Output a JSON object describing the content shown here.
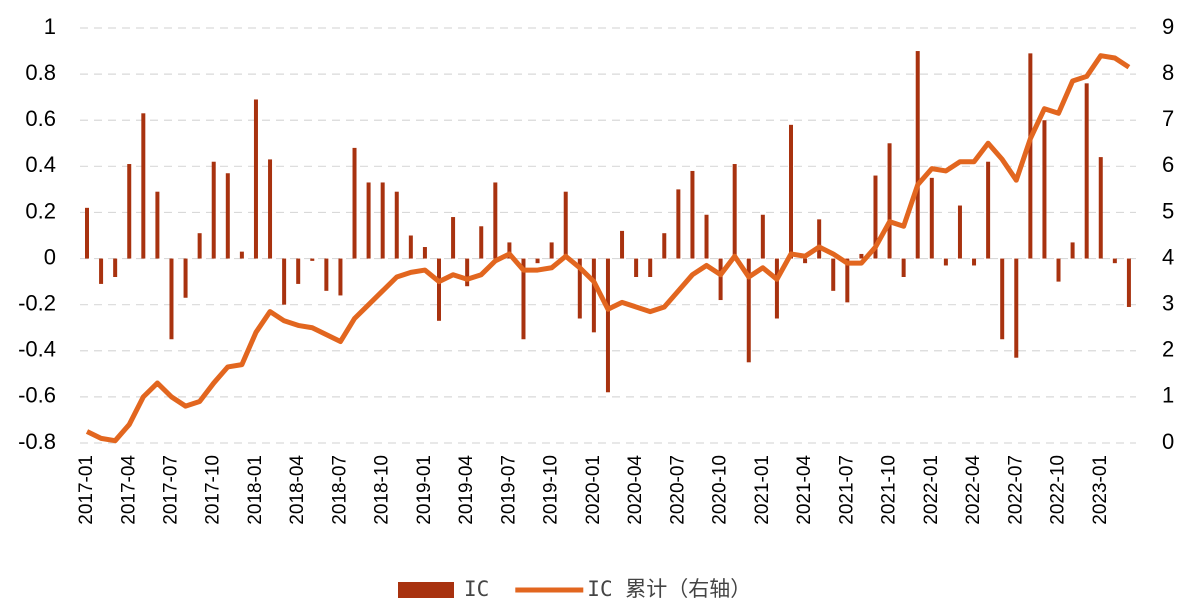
{
  "chart_data": {
    "type": "bar",
    "categories": [
      "2017-01",
      null,
      null,
      "2017-04",
      null,
      null,
      "2017-07",
      null,
      null,
      "2017-10",
      null,
      null,
      "2018-01",
      null,
      null,
      "2018-04",
      null,
      null,
      "2018-07",
      null,
      null,
      "2018-10",
      null,
      null,
      "2019-01",
      null,
      null,
      "2019-04",
      null,
      null,
      "2019-07",
      null,
      null,
      "2019-10",
      null,
      null,
      "2020-01",
      null,
      null,
      "2020-04",
      null,
      null,
      "2020-07",
      null,
      null,
      "2020-10",
      null,
      null,
      "2021-01",
      null,
      null,
      "2021-04",
      null,
      null,
      "2021-07",
      null,
      null,
      "2021-10",
      null,
      null,
      "2022-01",
      null,
      null,
      "2022-04",
      null,
      null,
      "2022-07",
      null,
      null,
      "2022-10",
      null,
      null,
      "2023-01",
      null,
      null
    ],
    "series": [
      {
        "name": "IC",
        "type": "bar",
        "color": "#a8320f",
        "values": [
          0.22,
          -0.11,
          -0.08,
          0.41,
          0.63,
          0.29,
          -0.35,
          -0.17,
          0.11,
          0.42,
          0.37,
          0.03,
          0.69,
          0.43,
          -0.2,
          -0.11,
          -0.01,
          -0.14,
          -0.16,
          0.48,
          0.33,
          0.33,
          0.29,
          0.1,
          0.05,
          -0.27,
          0.18,
          -0.12,
          0.14,
          0.33,
          0.07,
          -0.35,
          -0.02,
          0.07,
          0.29,
          -0.26,
          -0.32,
          -0.58,
          0.12,
          -0.08,
          -0.08,
          0.11,
          0.3,
          0.38,
          0.19,
          -0.18,
          0.41,
          -0.45,
          0.19,
          -0.26,
          0.58,
          -0.02,
          0.17,
          -0.14,
          -0.19,
          0.02,
          0.36,
          0.5,
          -0.08,
          0.9,
          0.35,
          -0.03,
          0.23,
          -0.03,
          0.42,
          -0.35,
          -0.43,
          0.89,
          0.6,
          -0.1,
          0.07,
          0.76,
          0.44,
          -0.02,
          -0.21
        ]
      },
      {
        "name": "IC 累计（右轴）",
        "type": "line",
        "axis": "y2",
        "color": "#e2661f",
        "values": [
          0.25,
          0.1,
          0.05,
          0.4,
          1.0,
          1.3,
          1.0,
          0.8,
          0.9,
          1.3,
          1.65,
          1.7,
          2.4,
          2.85,
          2.65,
          2.55,
          2.5,
          2.35,
          2.2,
          2.7,
          3.0,
          3.3,
          3.6,
          3.7,
          3.75,
          3.5,
          3.65,
          3.55,
          3.65,
          3.95,
          4.1,
          3.75,
          3.75,
          3.8,
          4.05,
          3.8,
          3.5,
          2.9,
          3.05,
          2.95,
          2.85,
          2.95,
          3.3,
          3.65,
          3.85,
          3.65,
          4.05,
          3.6,
          3.8,
          3.55,
          4.1,
          4.05,
          4.25,
          4.1,
          3.9,
          3.9,
          4.25,
          4.8,
          4.7,
          5.6,
          5.95,
          5.9,
          6.1,
          6.1,
          6.5,
          6.15,
          5.7,
          6.6,
          7.25,
          7.15,
          7.85,
          7.95,
          8.4,
          8.35,
          8.15
        ]
      }
    ],
    "ylim": [
      -0.8,
      1
    ],
    "yticks": [
      -0.8,
      -0.6,
      -0.4,
      -0.2,
      0,
      0.2,
      0.4,
      0.6,
      0.8,
      1
    ],
    "y2lim": [
      0,
      9
    ],
    "y2ticks": [
      0,
      1,
      2,
      3,
      4,
      5,
      6,
      7,
      8,
      9
    ],
    "grid": true,
    "legend": "bottom"
  }
}
